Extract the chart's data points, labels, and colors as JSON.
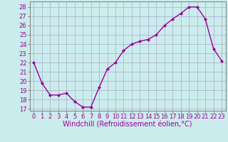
{
  "x": [
    0,
    1,
    2,
    3,
    4,
    5,
    6,
    7,
    8,
    9,
    10,
    11,
    12,
    13,
    14,
    15,
    16,
    17,
    18,
    19,
    20,
    21,
    22,
    23
  ],
  "y": [
    22,
    19.8,
    18.5,
    18.5,
    18.7,
    17.8,
    17.2,
    17.2,
    19.3,
    21.3,
    22.0,
    23.3,
    24.0,
    24.3,
    24.5,
    25.0,
    26.0,
    26.7,
    27.3,
    28.0,
    28.0,
    26.7,
    23.5,
    22.2
  ],
  "line_color": "#990099",
  "marker": "D",
  "marker_size": 2.0,
  "xlabel": "Windchill (Refroidissement éolien,°C)",
  "xlabel_fontsize": 7.0,
  "ylabel_ticks": [
    17,
    18,
    19,
    20,
    21,
    22,
    23,
    24,
    25,
    26,
    27,
    28
  ],
  "xlim": [
    -0.5,
    23.5
  ],
  "ylim": [
    16.8,
    28.6
  ],
  "background_color": "#cbecec",
  "grid_color": "#aaaacc",
  "tick_label_color": "#990099",
  "tick_fontsize": 6.0,
  "linewidth": 1.0
}
